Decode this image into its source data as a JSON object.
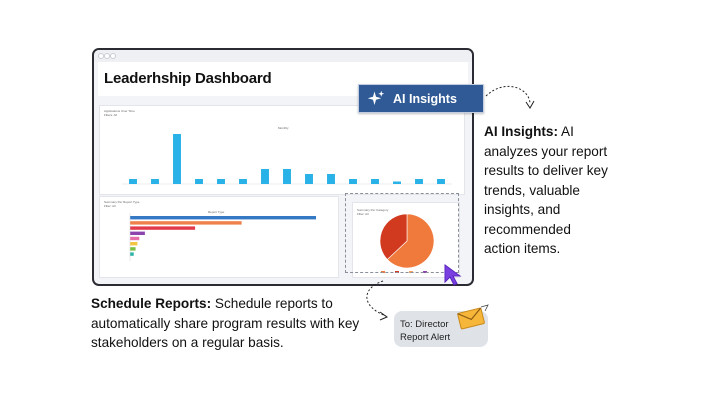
{
  "dashboard": {
    "title": "Leaderhship Dashboard",
    "bar_panel": {
      "title": "Applications Over Time",
      "subtitle": "Filters: All",
      "tag": "Monthly"
    },
    "hbar_panel": {
      "title": "Summary Per Report Type",
      "subtitle": "Filter: All",
      "legend": "Report Type"
    },
    "pie_panel": {
      "title": "Summary Per Category",
      "subtitle": "Filter: All"
    }
  },
  "ai_button": {
    "label": "AI Insights",
    "icon": "sparkle-icon"
  },
  "ai_callout": {
    "heading": "AI Insights:",
    "text": "AI analyzes your report results to deliver key trends, valuable insights, and recommended action items."
  },
  "schedule_callout": {
    "heading": "Schedule Reports:",
    "text": "Schedule reports to automatically share program results with key stakeholders on a regular basis."
  },
  "alert_card": {
    "line1": "To: Director",
    "line2": "Report Alert",
    "icon": "envelope-icon"
  },
  "colors": {
    "accent_blue": "#2f5a95",
    "bar_blue": "#29b2e8",
    "pie_orange": "#f07a3c",
    "pie_red": "#d13a1f"
  },
  "chart_data": [
    {
      "type": "bar",
      "values": [
        1,
        1,
        10,
        1,
        1,
        1,
        3,
        3,
        2,
        2,
        1,
        1,
        0.5,
        1,
        1
      ],
      "ylim": [
        0,
        12
      ]
    },
    {
      "type": "bar",
      "orientation": "horizontal",
      "series": [
        {
          "color": "#3579c4",
          "values": [
            100
          ]
        },
        {
          "color": "#f0804a",
          "values": [
            60
          ]
        },
        {
          "color": "#e23a4a",
          "values": [
            35
          ]
        },
        {
          "color": "#8e44ad",
          "values": [
            8
          ]
        },
        {
          "color": "#e76fa8",
          "values": [
            5
          ]
        },
        {
          "color": "#f4c542",
          "values": [
            4
          ]
        },
        {
          "color": "#7bc043",
          "values": [
            3
          ]
        },
        {
          "color": "#2bb3a6",
          "values": [
            2
          ]
        }
      ]
    },
    {
      "type": "pie",
      "values": [
        63,
        37
      ],
      "colors": [
        "#f07a3c",
        "#d13a1f"
      ]
    }
  ]
}
